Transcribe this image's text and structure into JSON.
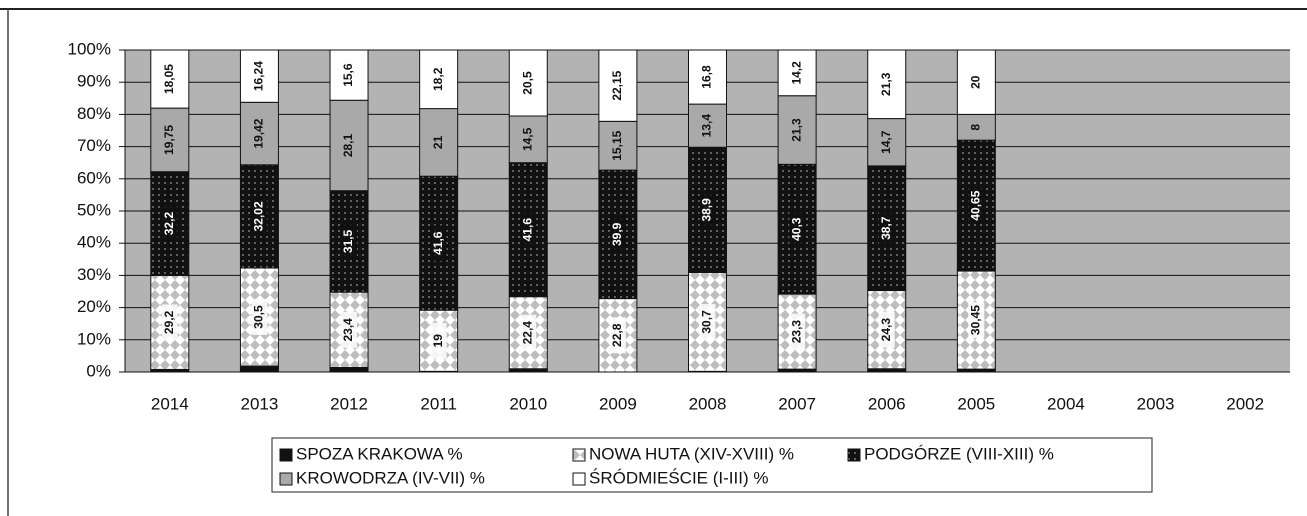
{
  "chart_data": {
    "type": "stacked_bar_100",
    "categories": [
      "2014",
      "2013",
      "2012",
      "2011",
      "2010",
      "2009",
      "2008",
      "2007",
      "2006",
      "2005",
      "2004",
      "2003",
      "2002"
    ],
    "series": [
      {
        "name": "SPOZA KRAKOWA %",
        "color": "#111111",
        "values": [
          0.8,
          1.82,
          1.4,
          0.2,
          1,
          0,
          0.2,
          0.9,
          1,
          0.9,
          null,
          null,
          null
        ]
      },
      {
        "name": "NOWA HUTA (XIV-XVIII) %",
        "color": "#ffffff",
        "pattern": "checker",
        "values": [
          29.2,
          30.5,
          23.4,
          19,
          22.4,
          22.8,
          30.7,
          23.3,
          24.3,
          30.45,
          null,
          null,
          null
        ],
        "value_labels": [
          "29,2",
          "30,5",
          "23,4",
          "19",
          "22,4",
          "22,8",
          "30,7",
          "23,3",
          "24,3",
          "30,45",
          null,
          null,
          null
        ]
      },
      {
        "name": "PODGÓRZE (VIII-XIII) %",
        "color": "#111111",
        "pattern": "dots",
        "values": [
          32.2,
          32.02,
          31.5,
          41.6,
          41.6,
          39.9,
          38.9,
          40.3,
          38.7,
          40.65,
          null,
          null,
          null
        ],
        "value_labels": [
          "32,2",
          "32,02",
          "31,5",
          "41,6",
          "41,6",
          "39,9",
          "38,9",
          "40,3",
          "38,7",
          "40,65",
          null,
          null,
          null
        ]
      },
      {
        "name": "KROWODRZA (IV-VII) %",
        "color": "#a9a9a9",
        "values": [
          19.75,
          19.42,
          28.1,
          21,
          14.5,
          15.15,
          13.4,
          21.3,
          14.7,
          8,
          null,
          null,
          null
        ],
        "value_labels": [
          "19,75",
          "19,42",
          "28,1",
          "21",
          "14,5",
          "15,15",
          "13,4",
          "21,3",
          "14,7",
          "8",
          null,
          null,
          null
        ]
      },
      {
        "name": "ŚRÓDMIEŚCIE (I-III) %",
        "color": "#ffffff",
        "values": [
          18.05,
          16.24,
          15.6,
          18.2,
          20.5,
          22.15,
          16.8,
          14.2,
          21.3,
          20,
          null,
          null,
          null
        ],
        "value_labels": [
          "18,05",
          "16,24",
          "15,6",
          "18,2",
          "20,5",
          "22,15",
          "16,8",
          "14,2",
          "21,3",
          "20",
          null,
          null,
          null
        ]
      }
    ],
    "ylim": [
      0,
      100
    ],
    "yticks": [
      {
        "value": 0,
        "label": "0%"
      },
      {
        "value": 10,
        "label": "10%"
      },
      {
        "value": 20,
        "label": "20%"
      },
      {
        "value": 30,
        "label": "30%"
      },
      {
        "value": 40,
        "label": "40%"
      },
      {
        "value": 50,
        "label": "50%"
      },
      {
        "value": 60,
        "label": "60%"
      },
      {
        "value": 70,
        "label": "70%"
      },
      {
        "value": 80,
        "label": "80%"
      },
      {
        "value": 90,
        "label": "90%"
      },
      {
        "value": 100,
        "label": "100%"
      }
    ],
    "grid": true,
    "legend": "bottom"
  }
}
